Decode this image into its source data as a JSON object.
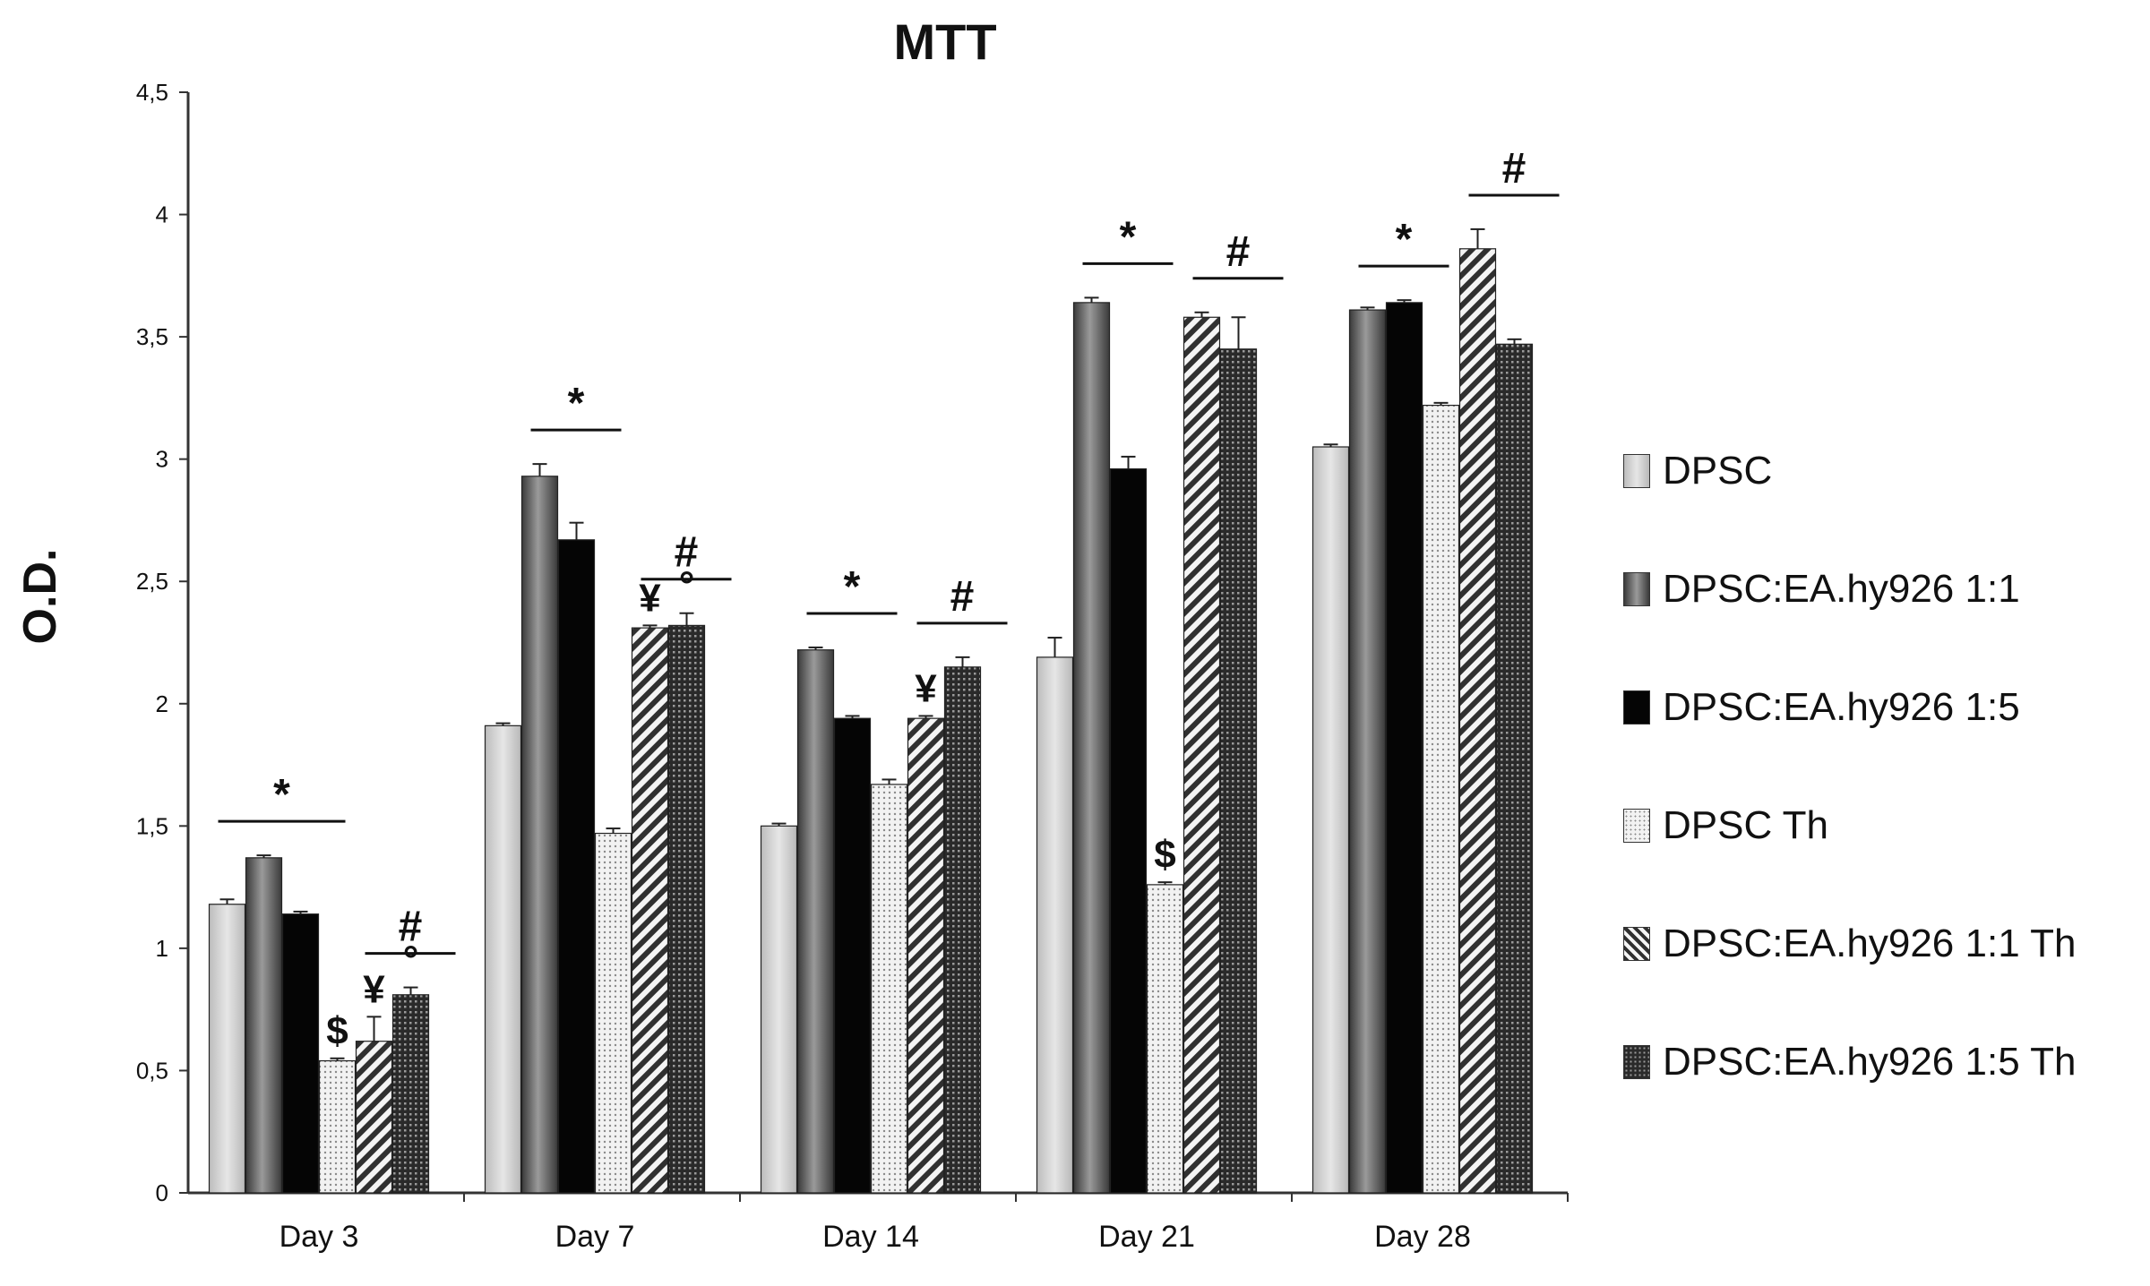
{
  "chart_data": {
    "type": "bar",
    "title": "MTT",
    "xlabel": "",
    "ylabel": "O.D.",
    "ylim": [
      0,
      4.5
    ],
    "yticks": [
      "0",
      "0,5",
      "1",
      "1,5",
      "2",
      "2,5",
      "3",
      "3,5",
      "4",
      "4,5"
    ],
    "categories": [
      "Day 3",
      "Day 7",
      "Day 14",
      "Day 21",
      "Day 28"
    ],
    "series": [
      {
        "name": "DPSC",
        "values": [
          1.18,
          1.91,
          1.5,
          2.19,
          3.05
        ],
        "errors": [
          0.02,
          0.01,
          0.01,
          0.08,
          0.01
        ],
        "pattern": "light"
      },
      {
        "name": "DPSC:EA.hy926 1:1",
        "values": [
          1.37,
          2.93,
          2.22,
          3.64,
          3.61
        ],
        "errors": [
          0.01,
          0.05,
          0.01,
          0.02,
          0.01
        ],
        "pattern": "dark-gradient"
      },
      {
        "name": "DPSC:EA.hy926 1:5",
        "values": [
          1.14,
          2.67,
          1.94,
          2.96,
          3.64
        ],
        "errors": [
          0.01,
          0.07,
          0.01,
          0.05,
          0.01
        ],
        "pattern": "black"
      },
      {
        "name": "DPSC Th",
        "values": [
          0.54,
          1.47,
          1.67,
          1.26,
          3.22
        ],
        "errors": [
          0.01,
          0.02,
          0.02,
          0.01,
          0.01
        ],
        "pattern": "dots"
      },
      {
        "name": "DPSC:EA.hy926 1:1 Th",
        "values": [
          0.62,
          2.31,
          1.94,
          3.58,
          3.86
        ],
        "errors": [
          0.1,
          0.01,
          0.01,
          0.02,
          0.08
        ],
        "pattern": "diagonal"
      },
      {
        "name": "DPSC:EA.hy926 1:5 Th",
        "values": [
          0.81,
          2.32,
          2.15,
          3.45,
          3.47
        ],
        "errors": [
          0.03,
          0.05,
          0.04,
          0.13,
          0.02
        ],
        "pattern": "grid"
      }
    ],
    "annotations": [
      {
        "text": "*",
        "category": "Day 3",
        "span": [
          0,
          2
        ],
        "bracket": true
      },
      {
        "text": "#",
        "category": "Day 3",
        "span": [
          4,
          5
        ],
        "bracket": true
      },
      {
        "text": "$",
        "category": "Day 3",
        "series": 3
      },
      {
        "text": "¥",
        "category": "Day 3",
        "series": 4
      },
      {
        "text": "°",
        "category": "Day 3",
        "series": 5
      },
      {
        "text": "*",
        "category": "Day 7",
        "span": [
          1,
          2
        ],
        "bracket": true
      },
      {
        "text": "#",
        "category": "Day 7",
        "span": [
          4,
          5
        ],
        "bracket": true
      },
      {
        "text": "¥",
        "category": "Day 7",
        "series": 4
      },
      {
        "text": "°",
        "category": "Day 7",
        "series": 5
      },
      {
        "text": "*",
        "category": "Day 14",
        "span": [
          1,
          2
        ],
        "bracket": true
      },
      {
        "text": "#",
        "category": "Day 14",
        "span": [
          4,
          5
        ],
        "bracket": true
      },
      {
        "text": "¥",
        "category": "Day 14",
        "series": 4
      },
      {
        "text": "*",
        "category": "Day 21",
        "span": [
          1,
          2
        ],
        "bracket": true
      },
      {
        "text": "#",
        "category": "Day 21",
        "span": [
          4,
          5
        ],
        "bracket": true
      },
      {
        "text": "$",
        "category": "Day 21",
        "series": 3
      },
      {
        "text": "*",
        "category": "Day 28",
        "span": [
          1,
          2
        ],
        "bracket": true
      },
      {
        "text": "#",
        "category": "Day 28",
        "span": [
          4,
          5
        ],
        "bracket": true
      }
    ],
    "legend_position": "right"
  }
}
